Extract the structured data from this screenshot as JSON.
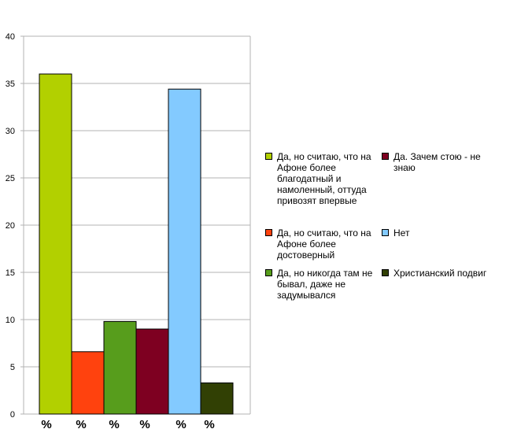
{
  "chart_data": {
    "type": "bar",
    "ylim": [
      0,
      40
    ],
    "yticks": [
      0,
      5,
      10,
      15,
      20,
      25,
      30,
      35,
      40
    ],
    "grid": true,
    "legend_position": "right",
    "categories": [
      "%",
      "%",
      "%",
      "%",
      "%",
      "%"
    ],
    "series": [
      {
        "name": "Да, но считаю, что на Афоне более благодатный и намоленный, оттуда привозят впервые",
        "value": 36.0,
        "color": "#b2d000"
      },
      {
        "name": "Да, но считаю, что на Афоне более достоверный",
        "value": 6.6,
        "color": "#ff420e"
      },
      {
        "name": "Да, но никогда там не бывал, даже не задумывался",
        "value": 9.8,
        "color": "#579d1c"
      },
      {
        "name": "Да. Зачем стою - не знаю",
        "value": 9.0,
        "color": "#7e0021"
      },
      {
        "name": "Нет",
        "value": 34.4,
        "color": "#83caff"
      },
      {
        "name": "Христианский подвиг",
        "value": 3.3,
        "color": "#314004"
      }
    ]
  }
}
